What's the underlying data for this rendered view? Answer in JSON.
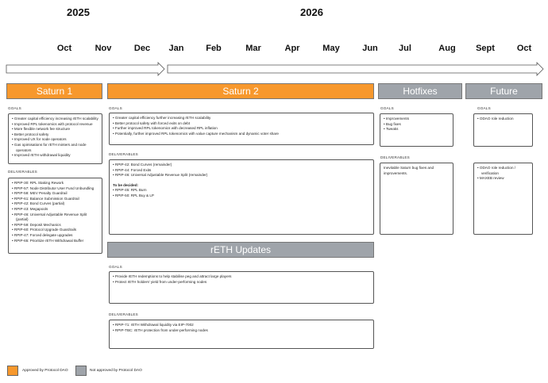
{
  "timeline": {
    "years": [
      "2025",
      "2026"
    ],
    "months": [
      "Oct",
      "Nov",
      "Dec",
      "Jan",
      "Feb",
      "Mar",
      "Apr",
      "May",
      "Jun",
      "Jul",
      "Aug",
      "Sept",
      "Oct"
    ]
  },
  "colors": {
    "approved": "#f7982d",
    "not_approved": "#9fa4aa"
  },
  "saturn1": {
    "title": "Saturn 1",
    "goals_label": "GOALS",
    "goals": [
      "Greater capital efficiency increasing rETH scalability",
      "Improved RPL tokenomics with protocol revenue",
      "More flexible network fee structure",
      "Better protocol safety",
      "Improved UX for node operators",
      "Gas opimisations for rETH minters and node operators",
      "Improved rETH withdrawal liquidity"
    ],
    "deliverables_label": "DELIVERABLES",
    "deliverables": [
      "RPIP-30: RPL Staking Rework",
      "RPIP-57: Node Distributor User Fund Unbundling",
      "RPIP-58: MEV Penalty Guardrail",
      "RPIP-61: Balance Submission Guardrail",
      "RPIP-42: Bond Curves (partial)",
      "RPIP-43: Megapools",
      "RPIP-46: Universal Adjustable Revenue Split (partial)",
      "RPIP-59: Deposit Mechanics",
      "RPIP-60: Protocol Upgrade Guardrails",
      "RPIP-47: Forced delegate upgrades",
      "RPIP-65: Prioritize rETH Withdrawal Buffer"
    ]
  },
  "saturn2": {
    "title": "Saturn 2",
    "goals_label": "GOALS",
    "goals": [
      "Greater capital efficiency further increasing rETH scalability",
      "Better protocol safety with forced exits on debt",
      "Further improved RPL tokenomics with decreased RPL inflation",
      "Potentially, further improved RPL tokenomics with value capture mechanism and dynamic voter share"
    ],
    "deliverables_label": "DELIVERABLES",
    "deliverables": [
      "RPIP-42: Bond Curves (remainder)",
      "RPIP-44: Forced Exits",
      "RPIP-46: Universal Adjustable Revenue Split (remainder)"
    ],
    "tbd_label": "To be decided:",
    "tbd": [
      "RPIP-45: RPL Burn",
      "RPIP-50: RPL Buy & LP"
    ]
  },
  "reth": {
    "title": "rETH Updates",
    "goals_label": "GOALS",
    "goals": [
      "Provide rETH redemptions to help stabilise peg and attract large players",
      "Protect rETH holders' yield from under-performing nodes"
    ],
    "deliverables_label": "DELIVERABLES",
    "deliverables": [
      "RPIP-71: rETH Withdrawal liquidity via EIP-7002",
      "RPIP-TBC: rETH protection from under-performing nodes"
    ]
  },
  "hotfixes": {
    "title": "Hotfixes",
    "goals_label": "GOALS",
    "goals": [
      "Improvements",
      "Bug fixes",
      "Tweaks"
    ],
    "deliverables_label": "DELIVERABLES",
    "deliverables_text": "Inevitable Saturn bug fixes and improvements."
  },
  "future": {
    "title": "Future",
    "goals_label": "GOALS",
    "goals": [
      "ODAO role reduction"
    ],
    "deliverables": [
      "ODAO role reduction / verification",
      "MAXEB review"
    ]
  },
  "legend": {
    "approved": "Approved by Protocol DAO",
    "not_approved": "Not approved by Protocol DAO"
  }
}
